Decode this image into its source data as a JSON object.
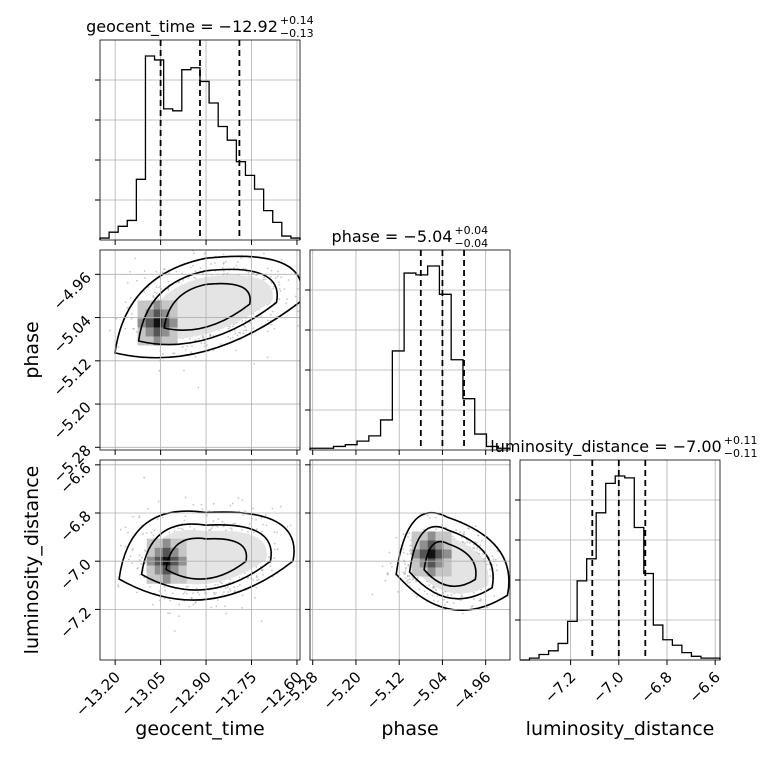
{
  "chart_data": {
    "type": "corner",
    "parameters": [
      "geocent_time",
      "phase",
      "luminosity_distance"
    ],
    "grid": true,
    "titles": [
      {
        "prefix": "geocent_time = ",
        "value": "−12.92",
        "plus": "+0.14",
        "minus": "−0.13"
      },
      {
        "prefix": "phase = ",
        "value": "−5.04",
        "plus": "+0.04",
        "minus": "−0.04"
      },
      {
        "prefix": "luminosity_distance = ",
        "value": "−7.00",
        "plus": "+0.11",
        "minus": "−0.11"
      }
    ],
    "axes": {
      "geocent_time": {
        "range": [
          -13.25,
          -12.59
        ],
        "ticks": [
          -13.2,
          -13.05,
          -12.9,
          -12.75,
          -12.6
        ],
        "tick_labels": [
          "−13.20",
          "−13.05",
          "−12.90",
          "−12.75",
          "−12.60"
        ]
      },
      "phase": {
        "range": [
          -5.285,
          -4.915
        ],
        "ticks": [
          -5.28,
          -5.2,
          -5.12,
          -5.04,
          -4.96
        ],
        "tick_labels": [
          "−5.28",
          "−5.20",
          "−5.12",
          "−5.04",
          "−4.96"
        ]
      },
      "luminosity_distance": {
        "range": [
          -7.41,
          -6.58
        ],
        "ticks": [
          -7.2,
          -7.0,
          -6.8,
          -6.6
        ],
        "tick_labels": [
          "−7.2",
          "−7.0",
          "−6.8",
          "−6.6"
        ]
      }
    },
    "histograms": [
      {
        "param": "geocent_time",
        "quantiles": [
          -13.05,
          -12.92,
          -12.79
        ],
        "counts": [
          1,
          4,
          7,
          10,
          31,
          94,
          92,
          67,
          66,
          87,
          88,
          81,
          70,
          58,
          51,
          40,
          33,
          26,
          15,
          9,
          2,
          1
        ]
      },
      {
        "param": "phase",
        "quantiles": [
          -5.08,
          -5.04,
          -5.0
        ],
        "counts": [
          1,
          1,
          2,
          3,
          5,
          8,
          17,
          56,
          100,
          99,
          104,
          88,
          51,
          29,
          9,
          2,
          1
        ]
      },
      {
        "param": "luminosity_distance",
        "quantiles": [
          -7.11,
          -7.0,
          -6.89
        ],
        "counts": [
          0,
          1,
          3,
          5,
          9,
          21,
          43,
          55,
          80,
          96,
          100,
          99,
          72,
          47,
          19,
          11,
          8,
          4,
          2,
          1,
          1
        ]
      }
    ],
    "pairs": [
      {
        "x": "geocent_time",
        "y": "phase",
        "centroids": [
          [
            -13.05,
            -5.05
          ],
          [
            -12.9,
            -5.02
          ],
          [
            -12.76,
            -4.99
          ]
        ],
        "density_peak": [
          -13.06,
          -5.05
        ]
      },
      {
        "x": "geocent_time",
        "y": "luminosity_distance",
        "centroids": [
          [
            -13.04,
            -6.98
          ],
          [
            -12.9,
            -7.0
          ],
          [
            -12.78,
            -6.95
          ]
        ],
        "density_peak": [
          -13.03,
          -7.0
        ]
      },
      {
        "x": "phase",
        "y": "luminosity_distance",
        "centroids": [
          [
            -5.06,
            -6.97
          ],
          [
            -5.03,
            -7.02
          ],
          [
            -5.0,
            -7.06
          ]
        ],
        "density_peak": [
          -5.06,
          -6.97
        ]
      }
    ]
  }
}
